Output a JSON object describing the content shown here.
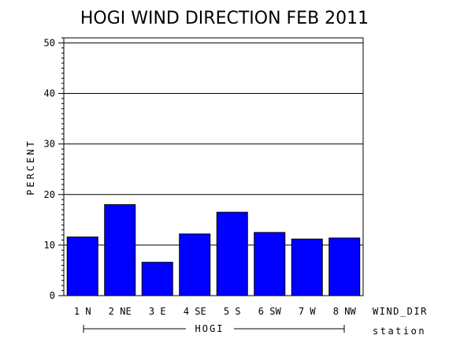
{
  "chart_data": {
    "type": "bar",
    "title": "HOGI WIND DIRECTION FEB 2011",
    "ylabel": "PERCENT",
    "xlabel": "WIND_DIR",
    "group_label": "HOGI",
    "group_axis_label": "station",
    "categories": [
      "1 N",
      "2 NE",
      "3 E",
      "4 SE",
      "5 S",
      "6 SW",
      "7 W",
      "8 NW"
    ],
    "values": [
      11.6,
      18.0,
      6.6,
      12.2,
      16.5,
      12.5,
      11.2,
      11.4
    ],
    "ylim": [
      0,
      51
    ],
    "yticks": [
      "0",
      "10",
      "20",
      "30",
      "40",
      "50"
    ],
    "grid": true,
    "bar_color": "#0000ff"
  }
}
